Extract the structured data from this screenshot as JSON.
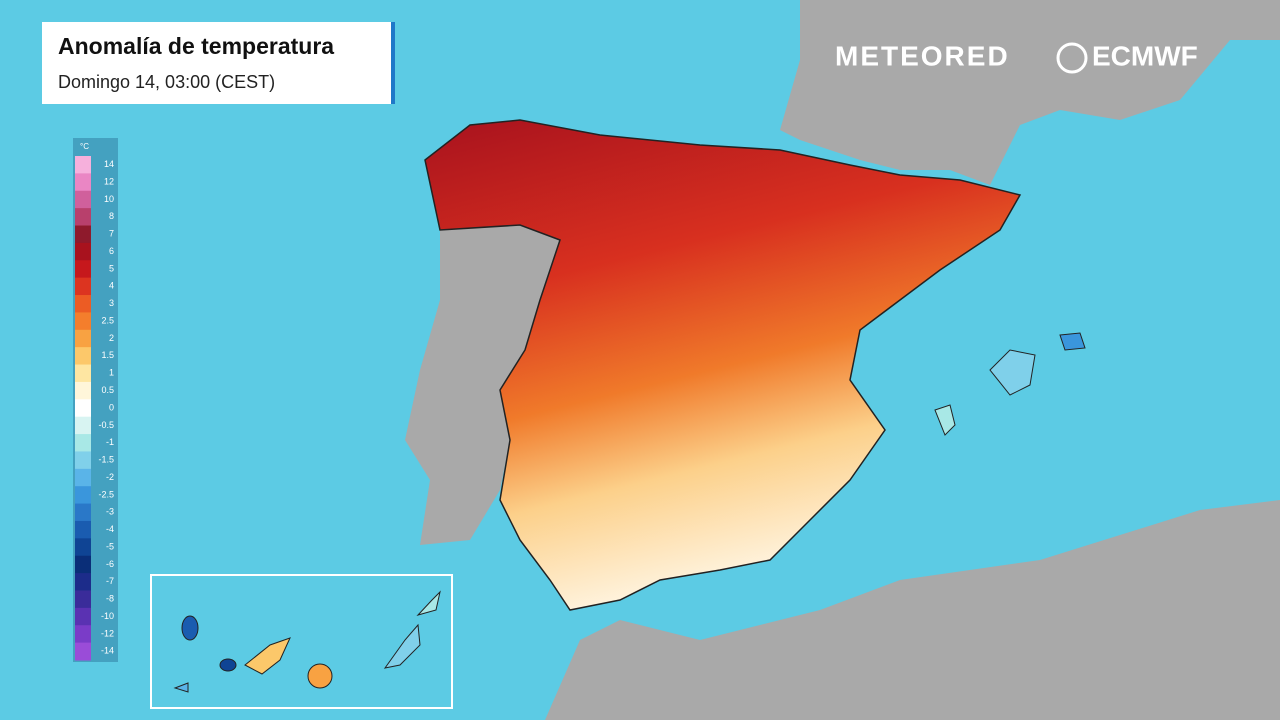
{
  "header": {
    "title": "Anomalía de temperatura",
    "subtitle": "Domingo 14, 03:00 (CEST)"
  },
  "brands": {
    "primary": "METEORED",
    "secondary": "ECMWF"
  },
  "legend": {
    "unit": "°C",
    "items": [
      {
        "label": "14",
        "color": "#f6b0dc"
      },
      {
        "label": "12",
        "color": "#ea86c4"
      },
      {
        "label": "10",
        "color": "#d0609c"
      },
      {
        "label": "8",
        "color": "#b8406c"
      },
      {
        "label": "7",
        "color": "#8e1a2c"
      },
      {
        "label": "6",
        "color": "#a8121e"
      },
      {
        "label": "5",
        "color": "#c6181c"
      },
      {
        "label": "4",
        "color": "#dc3420"
      },
      {
        "label": "3",
        "color": "#ec5c24"
      },
      {
        "label": "2.5",
        "color": "#f47e2c"
      },
      {
        "label": "2",
        "color": "#f8a242"
      },
      {
        "label": "1.5",
        "color": "#fcc86a"
      },
      {
        "label": "1",
        "color": "#fee6a2"
      },
      {
        "label": "0.5",
        "color": "#fff6da"
      },
      {
        "label": "0",
        "color": "#ffffff"
      },
      {
        "label": "-0.5",
        "color": "#d8f4f2"
      },
      {
        "label": "-1",
        "color": "#a8e8e6"
      },
      {
        "label": "-1.5",
        "color": "#80d0ea"
      },
      {
        "label": "-2",
        "color": "#5ab4e8"
      },
      {
        "label": "-2.5",
        "color": "#3a96dc"
      },
      {
        "label": "-3",
        "color": "#2a78c8"
      },
      {
        "label": "-4",
        "color": "#1a5cb0"
      },
      {
        "label": "-5",
        "color": "#0f4494"
      },
      {
        "label": "-6",
        "color": "#0a2e78"
      },
      {
        "label": "-7",
        "color": "#1c2c8a"
      },
      {
        "label": "-8",
        "color": "#3a2c9a"
      },
      {
        "label": "-10",
        "color": "#5a32b2"
      },
      {
        "label": "-12",
        "color": "#7a3cc8"
      },
      {
        "label": "-14",
        "color": "#9a4cd8"
      }
    ]
  }
}
